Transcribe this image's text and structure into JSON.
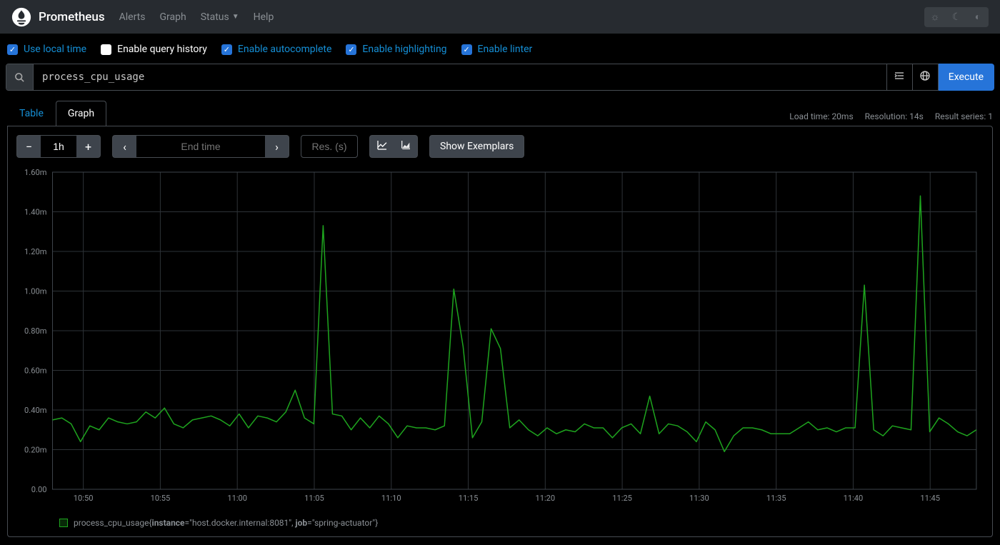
{
  "header": {
    "brand": "Prometheus",
    "nav": [
      "Alerts",
      "Graph",
      "Status",
      "Help"
    ],
    "status_has_caret": true
  },
  "options": {
    "items": [
      {
        "label": "Use local time",
        "checked": true,
        "blue": true
      },
      {
        "label": "Enable query history",
        "checked": false,
        "blue": false
      },
      {
        "label": "Enable autocomplete",
        "checked": true,
        "blue": true
      },
      {
        "label": "Enable highlighting",
        "checked": true,
        "blue": true
      },
      {
        "label": "Enable linter",
        "checked": true,
        "blue": true
      }
    ]
  },
  "query": {
    "value": "process_cpu_usage",
    "execute_label": "Execute"
  },
  "tabs": {
    "items": [
      {
        "label": "Table",
        "active": false
      },
      {
        "label": "Graph",
        "active": true
      }
    ]
  },
  "stats": {
    "load": "Load time: 20ms",
    "resolution": "Resolution: 14s",
    "series": "Result series: 1"
  },
  "controls": {
    "range": "1h",
    "end_placeholder": "End time",
    "res_placeholder": "Res. (s)",
    "exemplars_label": "Show Exemplars"
  },
  "chart": {
    "type": "line",
    "y": {
      "min": 0.0,
      "max": 1.6,
      "tick_step": 0.2,
      "tick_labels": [
        "0.00",
        "0.20m",
        "0.40m",
        "0.60m",
        "0.80m",
        "1.00m",
        "1.20m",
        "1.40m",
        "1.60m"
      ]
    },
    "x": {
      "min": 0,
      "max": 60,
      "ticks": [
        2,
        7,
        12,
        17,
        22,
        27,
        32,
        37,
        42,
        47,
        52,
        57
      ],
      "tick_labels": [
        "10:50",
        "10:55",
        "11:00",
        "11:05",
        "11:10",
        "11:15",
        "11:20",
        "11:25",
        "11:30",
        "11:35",
        "11:40",
        "11:45"
      ]
    },
    "series_color": "#1ea41e",
    "grid_color": "#2d3237",
    "border_color": "#3e444c",
    "background_color": "#000000",
    "line_width": 1.5,
    "values": [
      0.35,
      0.36,
      0.33,
      0.24,
      0.32,
      0.3,
      0.36,
      0.34,
      0.33,
      0.34,
      0.39,
      0.36,
      0.41,
      0.33,
      0.31,
      0.35,
      0.36,
      0.37,
      0.35,
      0.32,
      0.38,
      0.31,
      0.37,
      0.36,
      0.34,
      0.39,
      0.5,
      0.36,
      0.33,
      1.33,
      0.38,
      0.37,
      0.3,
      0.36,
      0.31,
      0.37,
      0.33,
      0.26,
      0.32,
      0.31,
      0.31,
      0.3,
      0.32,
      1.01,
      0.72,
      0.26,
      0.34,
      0.81,
      0.71,
      0.31,
      0.35,
      0.3,
      0.27,
      0.31,
      0.28,
      0.3,
      0.29,
      0.33,
      0.31,
      0.31,
      0.26,
      0.31,
      0.33,
      0.28,
      0.47,
      0.28,
      0.33,
      0.32,
      0.29,
      0.24,
      0.34,
      0.3,
      0.19,
      0.27,
      0.31,
      0.31,
      0.3,
      0.28,
      0.28,
      0.28,
      0.31,
      0.34,
      0.3,
      0.31,
      0.29,
      0.31,
      0.31,
      1.03,
      0.3,
      0.27,
      0.32,
      0.31,
      0.3,
      1.48,
      0.29,
      0.36,
      0.33,
      0.29,
      0.27,
      0.3
    ]
  },
  "legend": {
    "metric": "process_cpu_usage",
    "labels": "{instance=\"host.docker.internal:8081\", job=\"spring-actuator\"}",
    "instance_key": "instance",
    "instance_val": "=\"host.docker.internal:8081\", ",
    "job_key": "job",
    "job_val": "=\"spring-actuator\"}"
  }
}
